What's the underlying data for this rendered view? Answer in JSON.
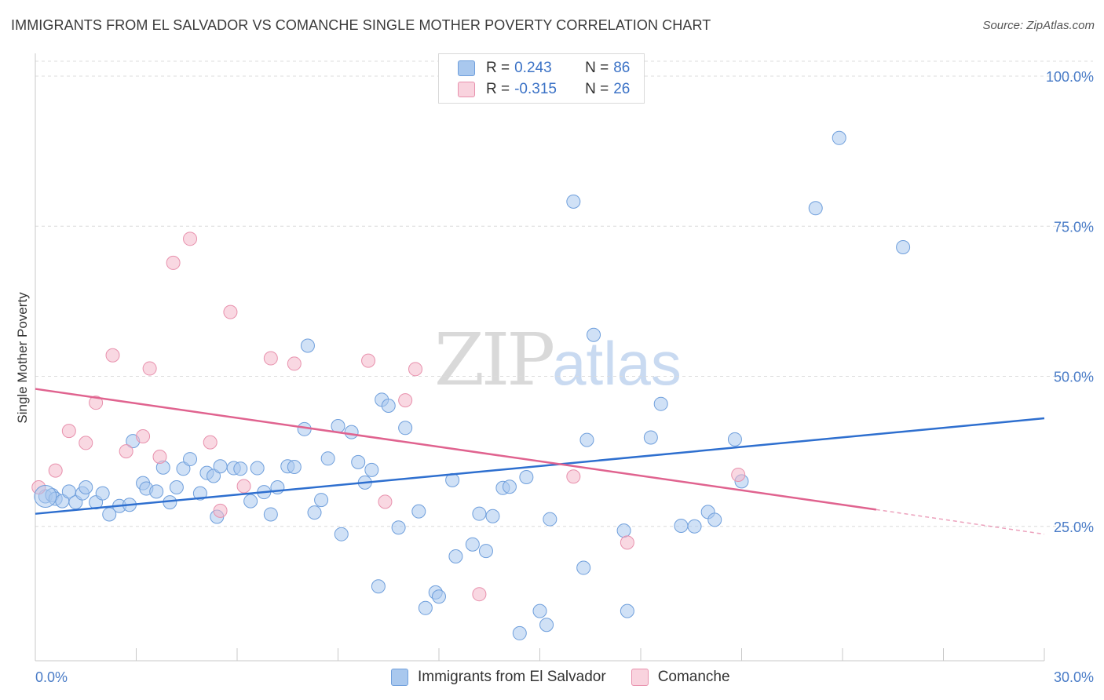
{
  "header": {
    "title": "IMMIGRANTS FROM EL SALVADOR VS COMANCHE SINGLE MOTHER POVERTY CORRELATION CHART",
    "source": "Source: ZipAtlas.com"
  },
  "watermark": {
    "zip": "ZIP",
    "atlas": "atlas"
  },
  "legend": {
    "rows": [
      {
        "r_label": "R = ",
        "r_value": "0.243",
        "n_label": "N = ",
        "n_value": "86"
      },
      {
        "r_label": "R = ",
        "r_value": "-0.315",
        "n_label": "N = ",
        "n_value": "26"
      }
    ]
  },
  "bottom_legend": {
    "items": [
      {
        "label": "Immigrants from El Salvador"
      },
      {
        "label": "Comanche"
      }
    ]
  },
  "colors": {
    "blue_fill": "#a9c8ee",
    "blue_stroke": "#6f9fdc",
    "blue_line": "#2e6fcf",
    "pink_fill": "#f4b8cb",
    "pink_stroke": "#e891ad",
    "pink_line": "#e0638f"
  },
  "chart_data": {
    "type": "scatter",
    "xlabel": "",
    "ylabel": "Single Mother Poverty",
    "xlim": [
      0,
      30
    ],
    "ylim": [
      0,
      100
    ],
    "x_tick_labels": [
      "0.0%",
      "30.0%"
    ],
    "y_ticks": [
      25,
      50,
      75,
      100
    ],
    "y_tick_labels": [
      "25.0%",
      "50.0%",
      "75.0%",
      "100.0%"
    ],
    "grid": true,
    "series": [
      {
        "name": "Immigrants from El Salvador",
        "color": "#a9c8ee",
        "trend": {
          "x": [
            0,
            30
          ],
          "y": [
            27.1,
            43.0
          ]
        },
        "points": [
          [
            0.3,
            30.0
          ],
          [
            0.5,
            30.2
          ],
          [
            0.6,
            29.6
          ],
          [
            0.8,
            29.2
          ],
          [
            1.0,
            30.8
          ],
          [
            1.2,
            29.0
          ],
          [
            1.4,
            30.5
          ],
          [
            1.5,
            31.5
          ],
          [
            1.8,
            29.0
          ],
          [
            2.0,
            30.5
          ],
          [
            2.2,
            27.0
          ],
          [
            2.5,
            28.4
          ],
          [
            2.8,
            28.6
          ],
          [
            2.9,
            39.2
          ],
          [
            3.2,
            32.2
          ],
          [
            3.3,
            31.3
          ],
          [
            3.6,
            30.8
          ],
          [
            3.8,
            34.8
          ],
          [
            4.0,
            29.0
          ],
          [
            4.2,
            31.5
          ],
          [
            4.4,
            34.6
          ],
          [
            4.6,
            36.2
          ],
          [
            4.9,
            30.5
          ],
          [
            5.1,
            33.9
          ],
          [
            5.3,
            33.4
          ],
          [
            5.4,
            26.6
          ],
          [
            5.5,
            35.0
          ],
          [
            5.9,
            34.7
          ],
          [
            6.1,
            34.6
          ],
          [
            6.4,
            29.2
          ],
          [
            6.6,
            34.7
          ],
          [
            6.8,
            30.7
          ],
          [
            7.0,
            27.0
          ],
          [
            7.2,
            31.5
          ],
          [
            7.5,
            35.0
          ],
          [
            7.7,
            34.9
          ],
          [
            8.0,
            41.2
          ],
          [
            8.1,
            55.1
          ],
          [
            8.3,
            27.3
          ],
          [
            8.5,
            29.4
          ],
          [
            8.7,
            36.3
          ],
          [
            9.0,
            41.7
          ],
          [
            9.1,
            23.7
          ],
          [
            9.4,
            40.7
          ],
          [
            9.6,
            35.7
          ],
          [
            9.8,
            32.3
          ],
          [
            10.0,
            34.4
          ],
          [
            10.2,
            15.0
          ],
          [
            10.3,
            46.1
          ],
          [
            10.5,
            45.1
          ],
          [
            10.8,
            24.8
          ],
          [
            11.0,
            41.4
          ],
          [
            11.4,
            27.5
          ],
          [
            11.6,
            11.4
          ],
          [
            11.9,
            14.0
          ],
          [
            12.0,
            13.3
          ],
          [
            12.4,
            32.7
          ],
          [
            12.5,
            20.0
          ],
          [
            13.0,
            22.0
          ],
          [
            13.2,
            27.1
          ],
          [
            13.4,
            20.9
          ],
          [
            13.6,
            26.7
          ],
          [
            13.9,
            31.4
          ],
          [
            14.1,
            31.6
          ],
          [
            14.4,
            7.2
          ],
          [
            14.6,
            33.2
          ],
          [
            15.0,
            10.9
          ],
          [
            15.2,
            8.6
          ],
          [
            15.3,
            26.2
          ],
          [
            16.0,
            79.1
          ],
          [
            16.3,
            18.1
          ],
          [
            16.4,
            39.4
          ],
          [
            16.6,
            56.9
          ],
          [
            17.5,
            24.3
          ],
          [
            17.6,
            10.9
          ],
          [
            18.3,
            39.8
          ],
          [
            18.6,
            45.4
          ],
          [
            19.2,
            25.1
          ],
          [
            19.6,
            25.0
          ],
          [
            20.0,
            27.4
          ],
          [
            20.2,
            26.1
          ],
          [
            20.8,
            39.5
          ],
          [
            21.0,
            32.5
          ],
          [
            23.2,
            78.0
          ],
          [
            23.9,
            89.7
          ],
          [
            25.8,
            71.5
          ]
        ]
      },
      {
        "name": "Comanche",
        "color": "#f4b8cb",
        "trend": {
          "x": [
            0,
            25.0
          ],
          "y": [
            47.9,
            27.8
          ]
        },
        "trend_dashed": {
          "x": [
            25.0,
            30
          ],
          "y": [
            27.8,
            23.7
          ]
        },
        "points": [
          [
            0.1,
            31.5
          ],
          [
            0.6,
            34.3
          ],
          [
            1.0,
            40.9
          ],
          [
            1.5,
            38.9
          ],
          [
            1.8,
            45.6
          ],
          [
            2.3,
            53.5
          ],
          [
            2.7,
            37.5
          ],
          [
            3.2,
            40.0
          ],
          [
            3.4,
            51.3
          ],
          [
            3.7,
            36.6
          ],
          [
            4.1,
            68.9
          ],
          [
            4.6,
            72.9
          ],
          [
            5.2,
            39.0
          ],
          [
            5.5,
            27.6
          ],
          [
            5.8,
            60.7
          ],
          [
            6.2,
            31.7
          ],
          [
            7.0,
            53.0
          ],
          [
            7.7,
            52.1
          ],
          [
            9.9,
            52.6
          ],
          [
            10.4,
            29.1
          ],
          [
            11.0,
            46.0
          ],
          [
            11.3,
            51.2
          ],
          [
            13.2,
            13.7
          ],
          [
            16.0,
            33.3
          ],
          [
            17.6,
            22.3
          ],
          [
            20.9,
            33.6
          ]
        ]
      }
    ]
  }
}
